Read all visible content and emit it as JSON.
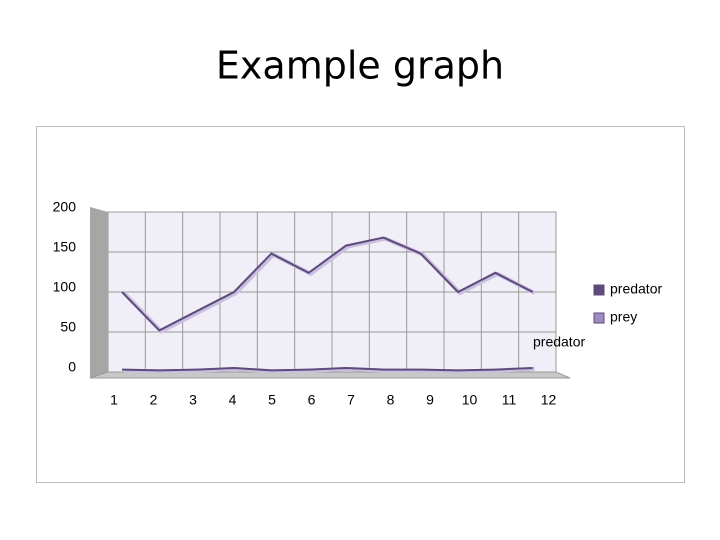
{
  "chart_data": {
    "type": "line",
    "title": "Example graph",
    "categories": [
      "1",
      "2",
      "3",
      "4",
      "5",
      "6",
      "7",
      "8",
      "9",
      "10",
      "11",
      "12"
    ],
    "series": [
      {
        "name": "predator",
        "color": "#604a7b",
        "values": [
          3,
          2,
          3,
          5,
          2,
          3,
          5,
          3,
          3,
          2,
          3,
          5
        ]
      },
      {
        "name": "prey",
        "color": "#9d8cbf",
        "values": [
          100,
          52,
          76,
          100,
          148,
          124,
          158,
          168,
          148,
          100,
          124,
          100
        ]
      }
    ],
    "ylim": [
      0,
      200
    ],
    "yticks": [
      0,
      50,
      100,
      150,
      200
    ],
    "grid": true,
    "legend": "right",
    "annotation": "predator"
  }
}
